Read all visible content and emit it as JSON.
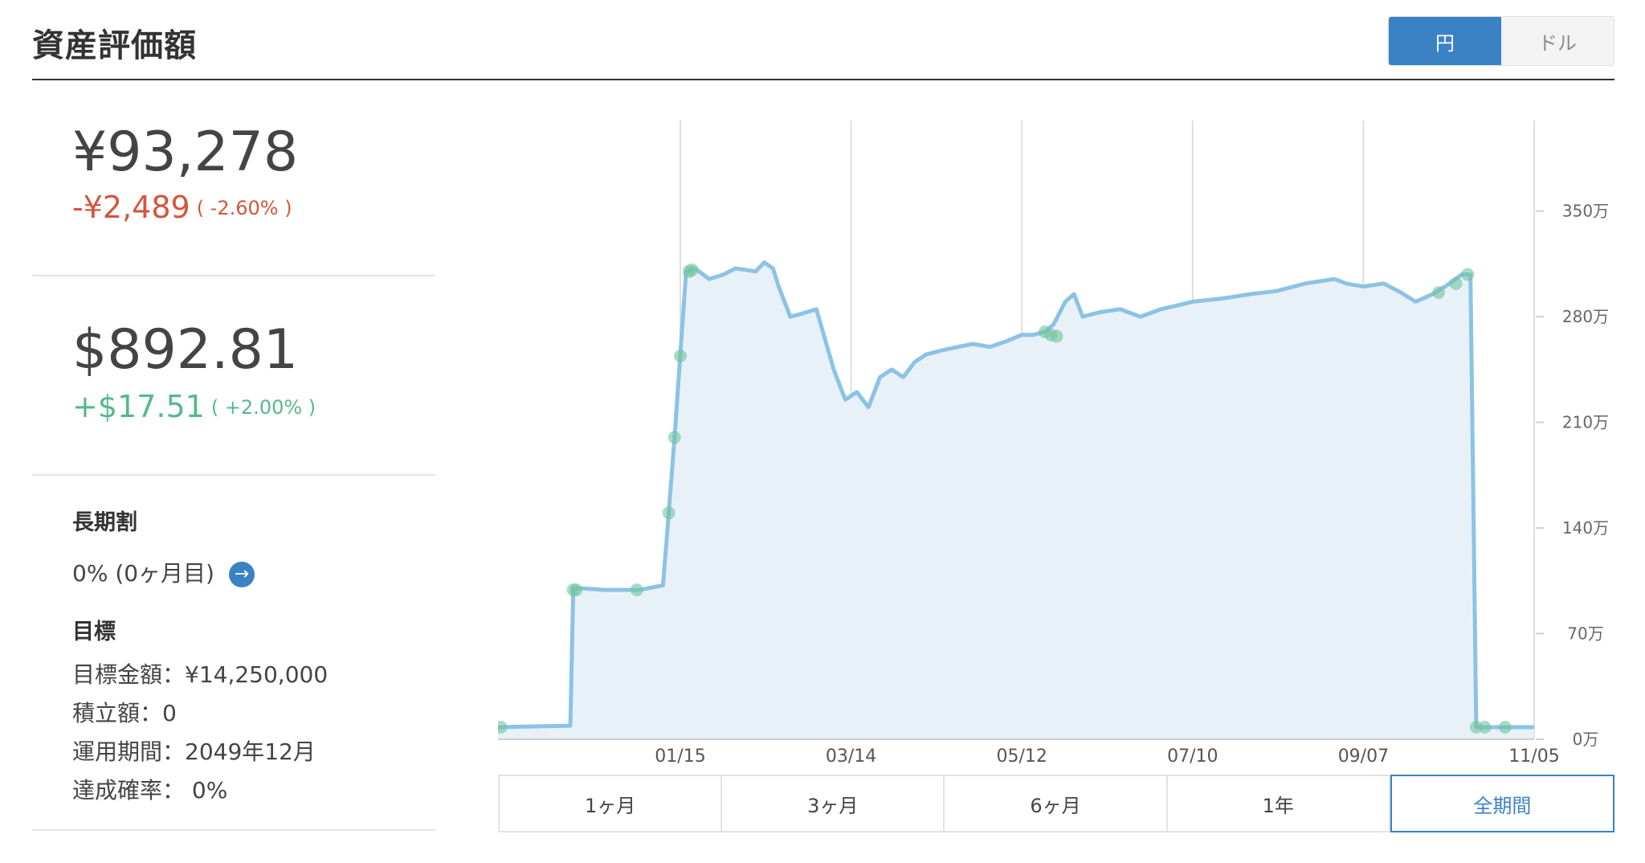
{
  "header": {
    "title": "資産評価額",
    "currency_toggle": {
      "jpy_label": "円",
      "usd_label": "ドル",
      "selected": "円"
    }
  },
  "summary": {
    "jpy": {
      "amount": "¥93,278",
      "change": "-¥2,489",
      "change_pct": "( -2.60% )"
    },
    "usd": {
      "amount": "$892.81",
      "change": "+$17.51",
      "change_pct": "( +2.00% )"
    }
  },
  "long_term": {
    "heading": "長期割",
    "value": "0% (0ヶ月目)"
  },
  "goal": {
    "heading": "目標",
    "target_amount": "目標金額：¥14,250,000",
    "saving_amount": "積立額：0",
    "period": "運用期間：2049年12月",
    "probability": "達成確率： 0%"
  },
  "colors": {
    "accent": "#3a82c4",
    "negative": "#d4553d",
    "positive": "#57b88a",
    "line": "#8bc3e6",
    "fill": "#e9f1f8",
    "marker": "#6fc59b"
  },
  "chart_data": {
    "type": "area",
    "y_unit": "万",
    "ylim": [
      0,
      410
    ],
    "y_ticks": [
      {
        "value": 0,
        "label": "0万"
      },
      {
        "value": 70,
        "label": "70万"
      },
      {
        "value": 140,
        "label": "140万"
      },
      {
        "value": 210,
        "label": "210万"
      },
      {
        "value": 280,
        "label": "280万"
      },
      {
        "value": 350,
        "label": "350万"
      }
    ],
    "x_start": "2023-11-13",
    "x_end": "2024-11-05",
    "x_ticks": [
      {
        "date": "2024-01-15",
        "label": "01/15"
      },
      {
        "date": "2024-03-14",
        "label": "03/14"
      },
      {
        "date": "2024-05-12",
        "label": "05/12"
      },
      {
        "date": "2024-07-10",
        "label": "07/10"
      },
      {
        "date": "2024-09-07",
        "label": "09/07"
      },
      {
        "date": "2024-11-05",
        "label": "11/05"
      }
    ],
    "grid": "vertical",
    "series": [
      {
        "values": [
          [
            "2023-11-13",
            8
          ],
          [
            "2023-12-08",
            9
          ],
          [
            "2023-12-09",
            100
          ],
          [
            "2023-12-12",
            100
          ],
          [
            "2023-12-20",
            99
          ],
          [
            "2024-01-01",
            99
          ],
          [
            "2024-01-09",
            102
          ],
          [
            "2024-01-11",
            150
          ],
          [
            "2024-01-13",
            200
          ],
          [
            "2024-01-15",
            255
          ],
          [
            "2024-01-17",
            310
          ],
          [
            "2024-01-20",
            312
          ],
          [
            "2024-01-25",
            305
          ],
          [
            "2024-01-30",
            308
          ],
          [
            "2024-02-03",
            312
          ],
          [
            "2024-02-10",
            310
          ],
          [
            "2024-02-13",
            316
          ],
          [
            "2024-02-16",
            312
          ],
          [
            "2024-02-18",
            300
          ],
          [
            "2024-02-22",
            280
          ],
          [
            "2024-02-26",
            282
          ],
          [
            "2024-03-02",
            285
          ],
          [
            "2024-03-05",
            265
          ],
          [
            "2024-03-08",
            245
          ],
          [
            "2024-03-12",
            225
          ],
          [
            "2024-03-16",
            230
          ],
          [
            "2024-03-20",
            220
          ],
          [
            "2024-03-24",
            240
          ],
          [
            "2024-03-28",
            245
          ],
          [
            "2024-04-01",
            240
          ],
          [
            "2024-04-05",
            250
          ],
          [
            "2024-04-09",
            255
          ],
          [
            "2024-04-15",
            258
          ],
          [
            "2024-04-20",
            260
          ],
          [
            "2024-04-25",
            262
          ],
          [
            "2024-05-01",
            260
          ],
          [
            "2024-05-07",
            264
          ],
          [
            "2024-05-12",
            268
          ],
          [
            "2024-05-16",
            268
          ],
          [
            "2024-05-20",
            270
          ],
          [
            "2024-05-23",
            275
          ],
          [
            "2024-05-27",
            290
          ],
          [
            "2024-05-30",
            295
          ],
          [
            "2024-06-02",
            280
          ],
          [
            "2024-06-08",
            283
          ],
          [
            "2024-06-15",
            285
          ],
          [
            "2024-06-22",
            280
          ],
          [
            "2024-06-29",
            285
          ],
          [
            "2024-07-06",
            288
          ],
          [
            "2024-07-10",
            290
          ],
          [
            "2024-07-20",
            292
          ],
          [
            "2024-07-30",
            295
          ],
          [
            "2024-08-08",
            297
          ],
          [
            "2024-08-18",
            302
          ],
          [
            "2024-08-28",
            305
          ],
          [
            "2024-09-01",
            302
          ],
          [
            "2024-09-07",
            300
          ],
          [
            "2024-09-14",
            302
          ],
          [
            "2024-09-20",
            296
          ],
          [
            "2024-09-25",
            290
          ],
          [
            "2024-10-01",
            295
          ],
          [
            "2024-10-06",
            301
          ],
          [
            "2024-10-11",
            308
          ],
          [
            "2024-10-14",
            308
          ],
          [
            "2024-10-16",
            8
          ],
          [
            "2024-11-05",
            8
          ]
        ]
      }
    ],
    "markers": [
      [
        "2023-11-14",
        8
      ],
      [
        "2023-12-09",
        99
      ],
      [
        "2023-12-10",
        99
      ],
      [
        "2023-12-31",
        99
      ],
      [
        "2024-01-11",
        150
      ],
      [
        "2024-01-13",
        200
      ],
      [
        "2024-01-15",
        254
      ],
      [
        "2024-01-18",
        310
      ],
      [
        "2024-01-19",
        311
      ],
      [
        "2024-05-20",
        270
      ],
      [
        "2024-05-22",
        268
      ],
      [
        "2024-05-24",
        267
      ],
      [
        "2024-10-03",
        296
      ],
      [
        "2024-10-09",
        302
      ],
      [
        "2024-10-13",
        308
      ],
      [
        "2024-10-16",
        8
      ],
      [
        "2024-10-19",
        8
      ],
      [
        "2024-10-26",
        8
      ]
    ]
  },
  "period_selector": {
    "options": [
      "1ヶ月",
      "3ヶ月",
      "6ヶ月",
      "1年",
      "全期間"
    ],
    "selected": "全期間"
  }
}
